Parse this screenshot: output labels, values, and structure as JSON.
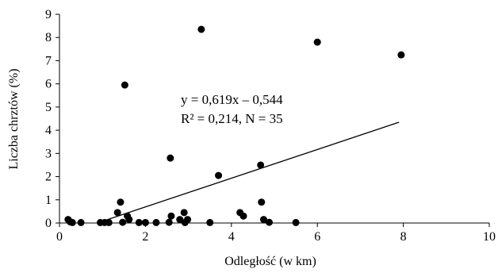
{
  "chart_data": {
    "type": "scatter",
    "xlabel": "Odległość (w km)",
    "ylabel": "Liczba chrztów (%)",
    "xlim": [
      0,
      10
    ],
    "ylim": [
      0,
      9
    ],
    "x_ticks": [
      "0",
      "2",
      "4",
      "6",
      "8",
      "10"
    ],
    "y_ticks": [
      "0",
      "1",
      "2",
      "3",
      "4",
      "5",
      "6",
      "7",
      "8",
      "9"
    ],
    "grid": false,
    "legend": "none",
    "marker_color": "#000000",
    "annotations": [
      "y = 0,619x – 0,544",
      "R² = 0,214,  N = 35"
    ],
    "trendline": {
      "slope": 0.619,
      "intercept": -0.544,
      "x_range": [
        0.9,
        7.9
      ]
    },
    "series": [
      {
        "points": [
          [
            0.2,
            0.15
          ],
          [
            0.3,
            0.02
          ],
          [
            0.5,
            0.02
          ],
          [
            0.95,
            0.02
          ],
          [
            1.05,
            0.02
          ],
          [
            1.15,
            0.02
          ],
          [
            1.35,
            0.45
          ],
          [
            1.42,
            0.9
          ],
          [
            1.47,
            0.03
          ],
          [
            1.52,
            5.95
          ],
          [
            1.58,
            0.3
          ],
          [
            1.62,
            0.15
          ],
          [
            1.85,
            0.02
          ],
          [
            2.0,
            0.02
          ],
          [
            2.25,
            0.02
          ],
          [
            2.55,
            0.03
          ],
          [
            2.58,
            2.8
          ],
          [
            2.6,
            0.3
          ],
          [
            2.8,
            0.15
          ],
          [
            2.9,
            0.45
          ],
          [
            2.92,
            0.02
          ],
          [
            2.98,
            0.15
          ],
          [
            3.3,
            8.35
          ],
          [
            3.5,
            0.02
          ],
          [
            3.7,
            2.05
          ],
          [
            4.2,
            0.45
          ],
          [
            4.28,
            0.3
          ],
          [
            4.68,
            2.5
          ],
          [
            4.7,
            0.9
          ],
          [
            4.75,
            0.15
          ],
          [
            4.88,
            0.03
          ],
          [
            5.5,
            0.02
          ],
          [
            6.0,
            7.8
          ],
          [
            7.95,
            7.25
          ],
          [
            0.25,
            0.05
          ]
        ]
      }
    ]
  }
}
